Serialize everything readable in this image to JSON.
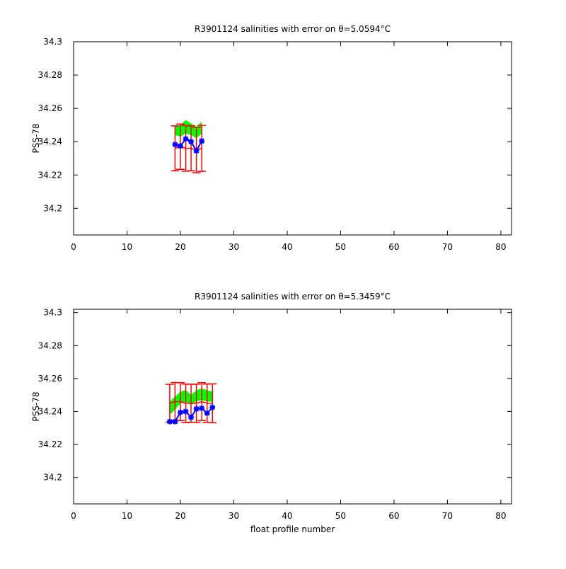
{
  "chart_data": [
    {
      "type": "line",
      "title": "R3901124 salinities with error on θ=5.0594°C",
      "y_label": "PSS-78",
      "xlim": [
        0,
        82
      ],
      "xticks": [
        0,
        10,
        20,
        30,
        40,
        50,
        60,
        70,
        80
      ],
      "ylim": [
        34.184,
        34.3
      ],
      "yticks": [
        34.2,
        34.22,
        34.24,
        34.26,
        34.28,
        34.3
      ],
      "x": [
        19,
        20,
        21,
        22,
        23,
        24
      ],
      "series": [
        {
          "kind": "band",
          "color": "#00ff00",
          "lower": [
            34.244,
            34.243,
            34.245,
            34.244,
            34.242,
            34.245
          ],
          "upper": [
            34.249,
            34.25,
            34.253,
            34.251,
            34.249,
            34.252
          ]
        },
        {
          "kind": "errorbar",
          "color": "#ff0000",
          "values": [
            34.236,
            34.237,
            34.236,
            34.236,
            34.235,
            34.236
          ],
          "errors": [
            0.0135,
            0.0136,
            0.0137,
            0.0135,
            0.0136,
            0.0138
          ]
        },
        {
          "kind": "marker-line",
          "color": "#0000ff",
          "values": [
            34.2383,
            34.2374,
            34.2417,
            34.24,
            34.2345,
            34.2404
          ]
        }
      ]
    },
    {
      "type": "line",
      "title": "R3901124 salinities with error on θ=5.3459°C",
      "y_label": "PSS-78",
      "x_label": "float profile number",
      "xlim": [
        0,
        82
      ],
      "xticks": [
        0,
        10,
        20,
        30,
        40,
        50,
        60,
        70,
        80
      ],
      "ylim": [
        34.184,
        34.302
      ],
      "yticks": [
        34.2,
        34.22,
        34.24,
        34.26,
        34.28,
        34.3
      ],
      "x": [
        18,
        19,
        20,
        21,
        22,
        23,
        24,
        25,
        26
      ],
      "series": [
        {
          "kind": "band",
          "color": "#00ff00",
          "lower": [
            34.238,
            34.241,
            34.245,
            34.246,
            34.244,
            34.246,
            34.247,
            34.246,
            34.246
          ],
          "upper": [
            34.246,
            34.249,
            34.252,
            34.253,
            34.25,
            34.253,
            34.254,
            34.253,
            34.252
          ]
        },
        {
          "kind": "errorbar",
          "color": "#ff0000",
          "values": [
            34.245,
            34.246,
            34.246,
            34.245,
            34.245,
            34.245,
            34.246,
            34.245,
            34.245
          ],
          "errors": [
            0.0115,
            0.0116,
            0.0115,
            0.0117,
            0.0115,
            0.0116,
            0.0115,
            0.0117,
            0.0118
          ]
        },
        {
          "kind": "marker-line",
          "color": "#0000ff",
          "values": [
            34.2339,
            34.2339,
            34.2395,
            34.24,
            34.2365,
            34.2416,
            34.242,
            34.239,
            34.2425
          ]
        }
      ]
    }
  ]
}
